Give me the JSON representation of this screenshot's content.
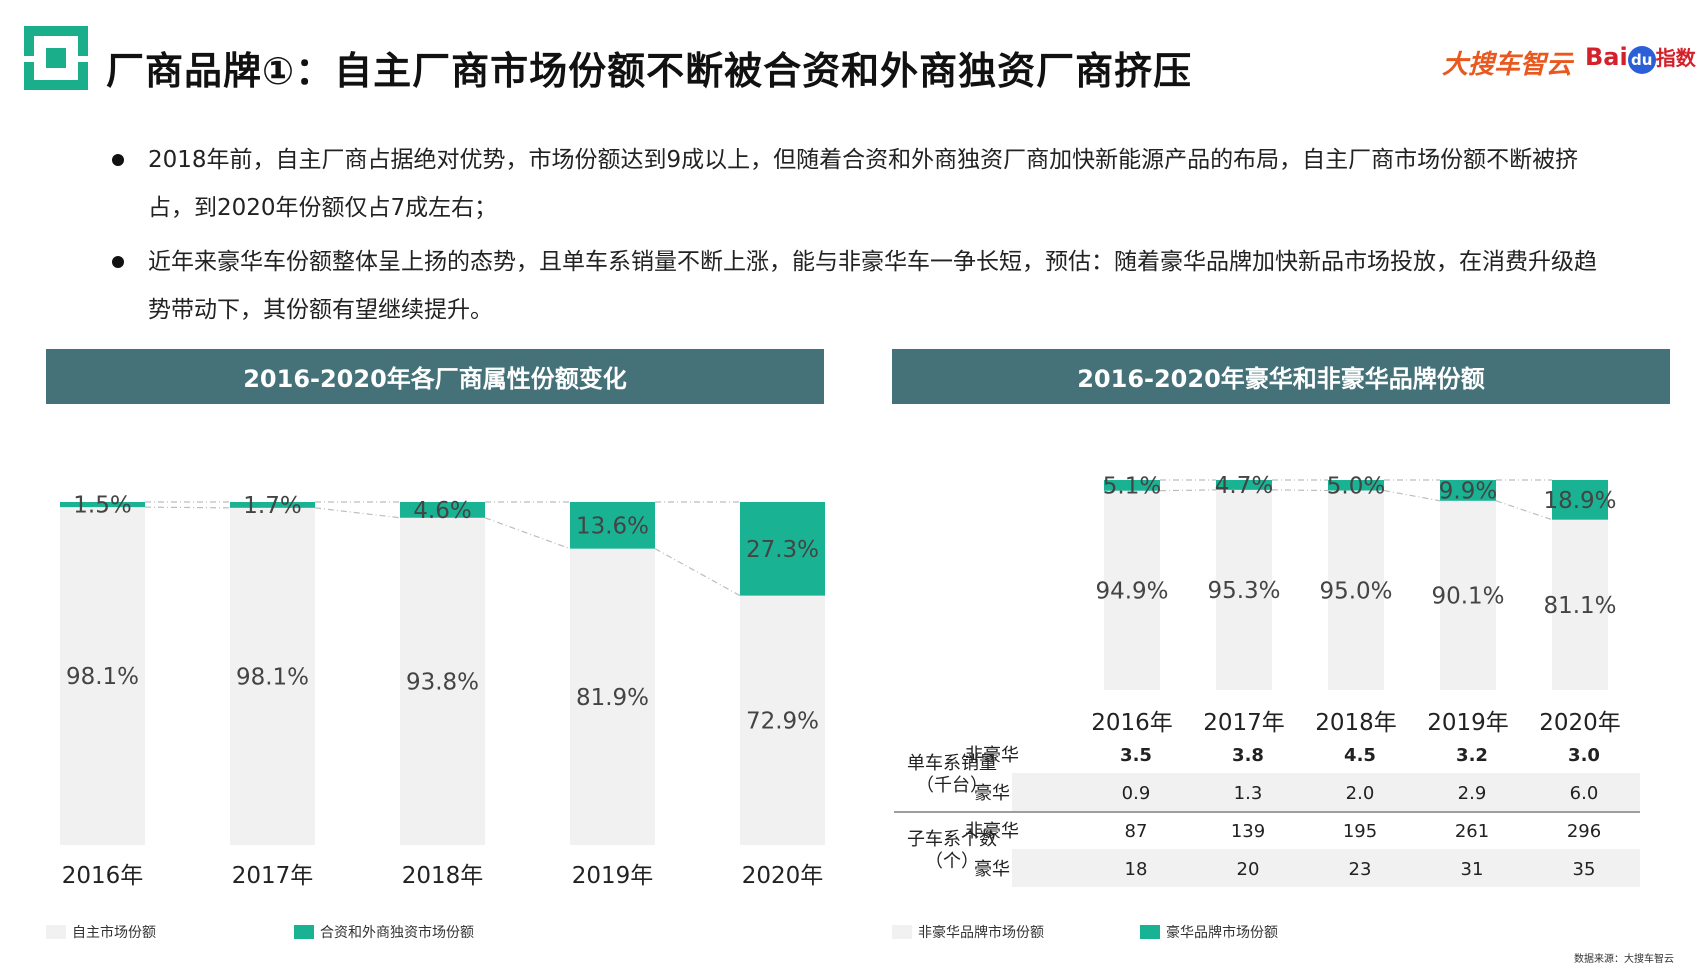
{
  "header": {
    "title": "厂商品牌①：自主厂商市场份额不断被合资和外商独资厂商挤压",
    "brand_primary": "大搜车智云",
    "brand_secondary_a": "Bai",
    "brand_secondary_b": "du",
    "brand_secondary_c": "指数"
  },
  "bullets": [
    "2018年前，自主厂商占据绝对优势，市场份额达到9成以上，但随着合资和外商独资厂商加快新能源产品的布局，自主厂商市场份额不断被挤占，到2020年份额仅占7成左右；",
    "近年来豪华车份额整体呈上扬的态势，且单车系销量不断上涨，能与非豪华车一争长短，预估：随着豪华品牌加快新品市场投放，在消费升级趋势带动下，其份额有望继续提升。"
  ],
  "colors": {
    "light": "#f1f1f1",
    "teal": "#19b394",
    "banner": "#457179"
  },
  "chart_data": [
    {
      "type": "bar",
      "stacked": true,
      "percent": true,
      "title": "2016-2020年各厂商属性份额变化",
      "categories": [
        "2016年",
        "2017年",
        "2018年",
        "2019年",
        "2020年"
      ],
      "ylim": [
        0,
        100
      ],
      "series": [
        {
          "name": "自主市场份额",
          "values": [
            98.1,
            98.1,
            93.8,
            81.9,
            72.9
          ],
          "labels": [
            "98.1%",
            "98.1%",
            "93.8%",
            "81.9%",
            "72.9%"
          ],
          "color": "#f1f1f1"
        },
        {
          "name": "合资和外商独资市场份额",
          "values": [
            1.5,
            1.7,
            4.6,
            13.6,
            27.3
          ],
          "labels": [
            "1.5%",
            "1.7%",
            "4.6%",
            "13.6%",
            "27.3%"
          ],
          "color": "#19b394"
        }
      ]
    },
    {
      "type": "bar",
      "stacked": true,
      "percent": true,
      "title": "2016-2020年豪华和非豪华品牌份额",
      "categories": [
        "2016年",
        "2017年",
        "2018年",
        "2019年",
        "2020年"
      ],
      "ylim": [
        0,
        100
      ],
      "series": [
        {
          "name": "非豪华品牌市场份额",
          "values": [
            94.9,
            95.3,
            95.0,
            90.1,
            81.1
          ],
          "labels": [
            "94.9%",
            "95.3%",
            "95.0%",
            "90.1%",
            "81.1%"
          ],
          "color": "#f1f1f1"
        },
        {
          "name": "豪华品牌市场份额",
          "values": [
            5.1,
            4.7,
            5.0,
            9.9,
            18.9
          ],
          "labels": [
            "5.1%",
            "4.7%",
            "5.0%",
            "9.9%",
            "18.9%"
          ],
          "color": "#19b394"
        }
      ],
      "table": {
        "groups": [
          {
            "label_line1": "单车系销量",
            "label_line2": "（千台）",
            "rows": [
              {
                "label": "非豪华",
                "bold": true,
                "values": [
                  "3.5",
                  "3.8",
                  "4.5",
                  "3.2",
                  "3.0"
                ]
              },
              {
                "label": "豪华",
                "bold": false,
                "values": [
                  "0.9",
                  "1.3",
                  "2.0",
                  "2.9",
                  "6.0"
                ]
              }
            ]
          },
          {
            "label_line1": "子车系个数",
            "label_line2": "（个）",
            "rows": [
              {
                "label": "非豪华",
                "bold": false,
                "values": [
                  "87",
                  "139",
                  "195",
                  "261",
                  "296"
                ]
              },
              {
                "label": "豪华",
                "bold": false,
                "values": [
                  "18",
                  "20",
                  "23",
                  "31",
                  "35"
                ]
              }
            ]
          }
        ]
      }
    }
  ],
  "footer": {
    "source": "数据来源：大搜车智云"
  }
}
